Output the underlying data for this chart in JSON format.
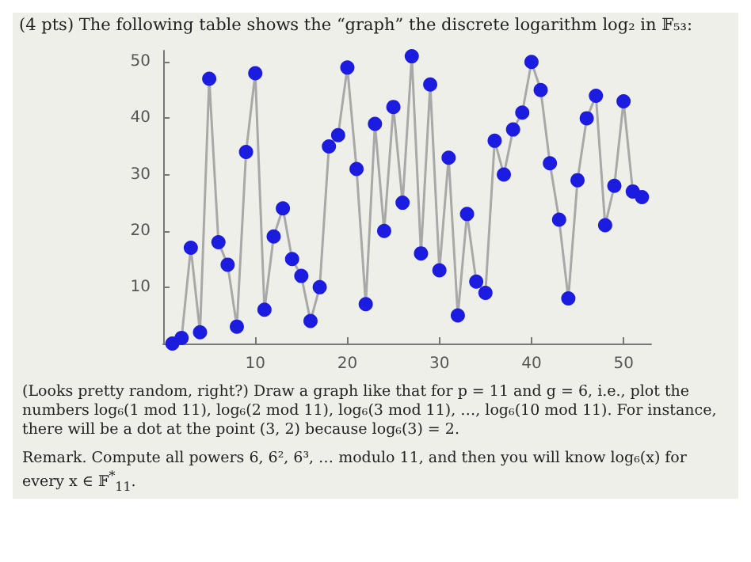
{
  "chart_data": {
    "type": "line",
    "title": "(4 pts) The following table shows the “graph” the discrete logarithm log₂ in 𝔽₅₃:",
    "x": [
      1,
      2,
      3,
      4,
      5,
      6,
      7,
      8,
      9,
      10,
      11,
      12,
      13,
      14,
      15,
      16,
      17,
      18,
      19,
      20,
      21,
      22,
      23,
      24,
      25,
      26,
      27,
      28,
      29,
      30,
      31,
      32,
      33,
      34,
      35,
      36,
      37,
      38,
      39,
      40,
      41,
      42,
      43,
      44,
      45,
      46,
      47,
      48,
      49,
      50,
      51,
      52
    ],
    "series": [
      {
        "color": "#1c1ce0",
        "values": [
          0,
          1,
          17,
          2,
          47,
          18,
          14,
          3,
          34,
          48,
          6,
          19,
          24,
          15,
          12,
          4,
          10,
          35,
          37,
          49,
          31,
          7,
          39,
          20,
          42,
          25,
          51,
          16,
          46,
          13,
          33,
          5,
          23,
          11,
          9,
          36,
          30,
          38,
          41,
          50,
          45,
          32,
          22,
          8,
          29,
          40,
          44,
          21,
          28,
          43,
          27,
          26
        ]
      }
    ],
    "xlim": [
      0,
      53
    ],
    "ylim": [
      0,
      52
    ],
    "xticks": [
      10,
      20,
      30,
      40,
      50
    ],
    "yticks": [
      10,
      20,
      30,
      40,
      50
    ],
    "grid": false,
    "marker": "circle",
    "line_style": "solid",
    "annotations": [
      "(Looks pretty random, right?) Draw a graph like that for p = 11 and g = 6, i.e., plot the numbers log₆(1 mod 11), log₆(2 mod 11), log₆(3 mod 11), …, log₆(10 mod 11). For instance, there will be a dot at the point (3, 2) because log₆(3) = 2.",
      "Remark. Compute all powers 6, 6², 6³, … modulo 11, and then you will know log₆(x) for every x ∈ 𝔽$^{*}$$_{11}$."
    ]
  }
}
